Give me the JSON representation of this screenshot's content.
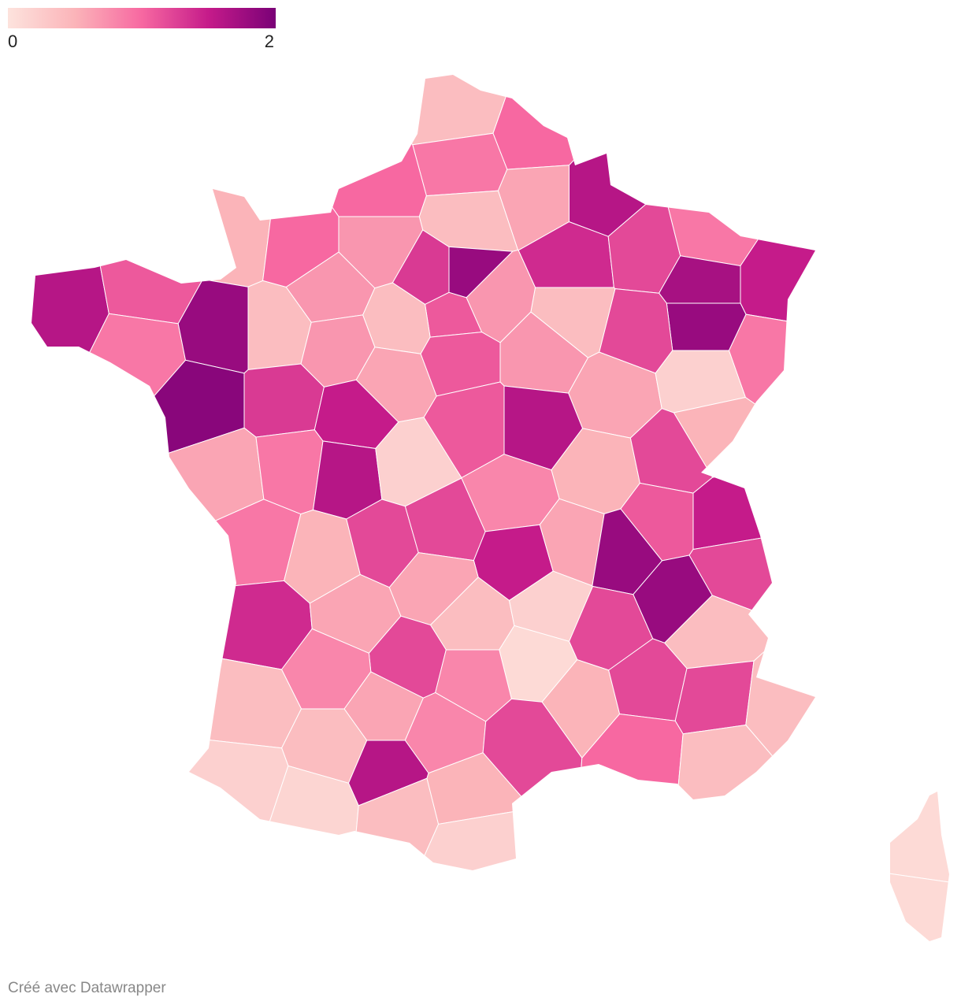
{
  "chart_data": {
    "type": "choropleth",
    "clim": [
      0,
      2
    ],
    "cticks": [
      0,
      2
    ],
    "colors": [
      "#fde3dd",
      "#fbb4b9",
      "#f768a1",
      "#c51b8a",
      "#7a0177"
    ],
    "values": [
      1.0,
      0.4,
      0.9,
      1.0,
      0.6,
      0.4,
      1.6,
      1.4,
      1.2,
      0.9,
      1.7,
      1.5,
      0.9,
      1.8,
      1.2,
      0.4,
      0.5,
      1.0,
      0.7,
      0.7,
      1.3,
      1.8,
      0.7,
      1.1,
      0.4,
      1.6,
      1.1,
      0.9,
      1.8,
      0.4,
      0.7,
      1.9,
      1.3,
      1.5,
      0.6,
      1.1,
      0.7,
      0.6,
      0.2,
      0.5,
      0.6,
      0.9,
      1.6,
      0.2,
      1.1,
      1.6,
      0.5,
      1.2,
      1.1,
      1.5,
      1.2,
      0.9,
      0.5,
      1.2,
      1.2,
      0.8,
      1.5,
      0.6,
      1.8,
      1.8,
      1.2,
      0.4,
      1.4,
      0.6,
      0.6,
      0.4,
      0.2,
      0.1,
      1.2,
      0.8,
      0.8,
      0.5,
      1.2,
      1.2,
      0.4,
      0.4,
      0.4,
      0.6,
      0.8,
      1.6,
      1.2,
      1.0,
      0.4,
      0.2,
      0.15,
      0.4,
      0.5,
      0.2,
      0.1,
      0.1
    ],
    "credit": "Créé avec Datawrapper"
  }
}
